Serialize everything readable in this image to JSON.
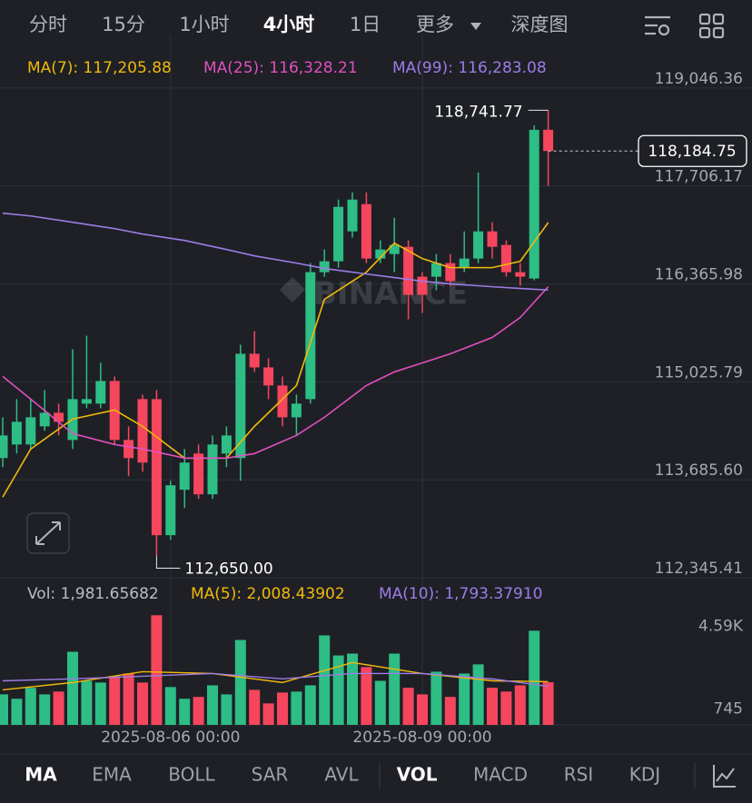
{
  "tabs": [
    "分时",
    "15分",
    "1小时",
    "4小时",
    "1日",
    "更多",
    "深度图"
  ],
  "active_tab": 3,
  "chart_data": [
    {
      "type": "candlestick",
      "up_color": "#2ebd85",
      "down_color": "#f6465d",
      "open": [
        113983,
        114169,
        114169,
        114417,
        114603,
        114231,
        114728,
        114728,
        115038,
        114231,
        114790,
        114790,
        112928,
        113549,
        114045,
        113487,
        114045,
        113983,
        115410,
        115224,
        114976,
        114541,
        114790,
        116527,
        116676,
        117085,
        117458,
        116713,
        116775,
        116874,
        116465,
        116465,
        116651,
        116589,
        116713,
        117085,
        116899,
        116527,
        116440,
        118475
      ],
      "high": [
        114541,
        114790,
        114790,
        114914,
        114728,
        115472,
        115658,
        115286,
        115100,
        114417,
        114852,
        114914,
        113673,
        114107,
        114169,
        114293,
        114417,
        115534,
        115720,
        115348,
        115100,
        114852,
        116651,
        116837,
        117520,
        117619,
        117619,
        116961,
        117272,
        116961,
        116527,
        116775,
        116775,
        117085,
        117892,
        117210,
        116961,
        116651,
        118537,
        118741.77
      ],
      "low": [
        113859,
        114045,
        114107,
        114355,
        114293,
        114107,
        114665,
        114665,
        114169,
        113735,
        113797,
        112650,
        112866,
        113300,
        113424,
        113424,
        113859,
        113673,
        115162,
        114790,
        114417,
        114293,
        114728,
        116465,
        116589,
        116999,
        116651,
        116651,
        116527,
        115882,
        115969,
        116279,
        116341,
        116527,
        116651,
        116713,
        116465,
        116341,
        116415,
        117706
      ],
      "close": [
        114293,
        114479,
        114541,
        114603,
        114479,
        114790,
        114790,
        115038,
        114231,
        113983,
        113921,
        112928,
        113611,
        113921,
        113487,
        114169,
        114293,
        115410,
        115224,
        114976,
        114541,
        114728,
        116527,
        116676,
        117421,
        117520,
        116713,
        116837,
        116899,
        116217,
        116217,
        116651,
        116403,
        116713,
        117085,
        116874,
        116527,
        116465,
        118475,
        118184.75
      ],
      "ylim": [
        112296,
        119754
      ],
      "yticks": [
        {
          "value": 119046.36,
          "label": "119,046.36"
        },
        {
          "value": 117706.17,
          "label": "117,706.17"
        },
        {
          "value": 116365.98,
          "label": "116,365.98"
        },
        {
          "value": 115025.79,
          "label": "115,025.79"
        },
        {
          "value": 113685.6,
          "label": "113,685.60"
        },
        {
          "value": 112345.41,
          "label": "112,345.41"
        }
      ],
      "x_labels": [
        {
          "index": 12,
          "label": "2025-08-06 00:00"
        },
        {
          "index": 30,
          "label": "2025-08-09 00:00"
        }
      ],
      "high_label": {
        "index": 39,
        "value": 118741.77,
        "label": "118,741.77"
      },
      "low_label": {
        "index": 11,
        "value": 112650,
        "label": "112,650.00"
      },
      "last_price": {
        "value": 118184.75,
        "label": "118,184.75"
      },
      "watermark": "BINANCE",
      "series": [
        {
          "name": "MA(7)",
          "legend": "MA(7): 117,205.88",
          "color": "#f0b90b",
          "x": [
            0,
            2,
            5,
            8,
            10,
            13,
            16,
            18,
            21,
            23,
            26,
            28,
            30,
            32,
            35,
            37,
            39
          ],
          "values": [
            113449,
            114107,
            114517,
            114641,
            114417,
            113983,
            113983,
            114417,
            114976,
            116155,
            116527,
            116924,
            116713,
            116589,
            116589,
            116676,
            117205.88
          ]
        },
        {
          "name": "MA(25)",
          "legend": "MA(25): 116,328.21",
          "color": "#e24fbf",
          "x": [
            0,
            2,
            5,
            8,
            10,
            13,
            16,
            18,
            21,
            23,
            26,
            28,
            30,
            32,
            35,
            37,
            39
          ],
          "values": [
            115100,
            114790,
            114318,
            114169,
            114107,
            113983,
            113983,
            114045,
            114293,
            114541,
            114976,
            115162,
            115286,
            115410,
            115633,
            115906,
            116328.21
          ]
        },
        {
          "name": "MA(99)",
          "legend": "MA(99): 116,283.08",
          "color": "#9d7ce6",
          "x": [
            0,
            2,
            5,
            8,
            10,
            13,
            16,
            18,
            21,
            23,
            26,
            28,
            30,
            32,
            35,
            37,
            39
          ],
          "values": [
            117334,
            117296,
            117210,
            117123,
            117048,
            116961,
            116837,
            116750,
            116651,
            116577,
            116502,
            116453,
            116403,
            116366,
            116328,
            116304,
            116283.08
          ]
        }
      ]
    },
    {
      "type": "bar",
      "legend": "Vol: 1,981.65682",
      "values": [
        1420,
        1215,
        1725,
        1420,
        1550,
        3400,
        2050,
        1970,
        2265,
        2390,
        1970,
        5100,
        1760,
        1215,
        1300,
        1840,
        1420,
        3950,
        1630,
        1000,
        1505,
        1550,
        1840,
        4165,
        3230,
        3315,
        2690,
        2050,
        3315,
        1725,
        1420,
        2475,
        1300,
        2390,
        2815,
        1725,
        1550,
        1840,
        4380,
        1981.65682
      ],
      "ylim": [
        0,
        5240
      ],
      "yticks": [
        {
          "value": 4590,
          "label": "4.59K"
        },
        745
      ],
      "series": [
        {
          "name": "MA(5)",
          "legend": "MA(5): 2,008.43902",
          "color": "#f0b90b",
          "x": [
            0,
            5,
            10,
            15,
            20,
            25,
            30,
            35,
            39
          ],
          "values": [
            1630,
            1970,
            2475,
            2390,
            1970,
            2900,
            2390,
            2050,
            2008.43902
          ]
        },
        {
          "name": "MA(10)",
          "legend": "MA(10): 1,793.37910",
          "color": "#9d7ce6",
          "x": [
            0,
            5,
            10,
            15,
            20,
            25,
            30,
            35,
            39
          ],
          "values": [
            2050,
            2140,
            2265,
            2390,
            2140,
            2390,
            2390,
            2140,
            1793.3791
          ]
        }
      ]
    }
  ],
  "indicator_tabs": [
    "MA",
    "EMA",
    "BOLL",
    "SAR",
    "AVL",
    "VOL",
    "MACD",
    "RSI",
    "KDJ"
  ],
  "active_indicators": [
    0,
    5
  ]
}
